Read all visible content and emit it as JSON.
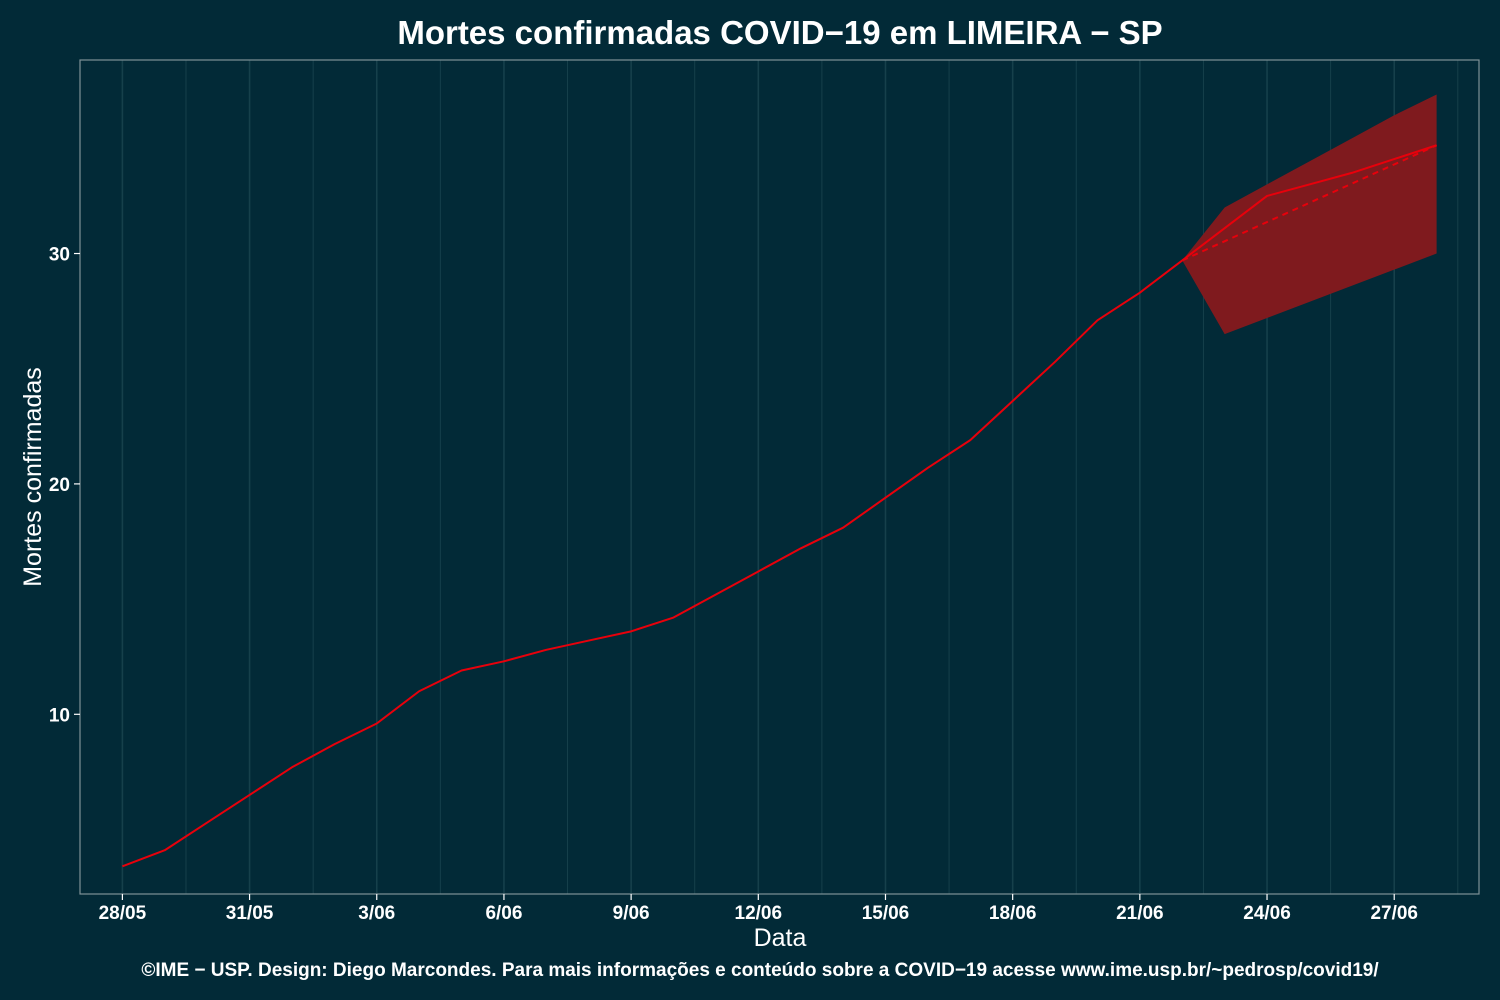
{
  "chart_data": {
    "type": "line",
    "title": "Mortes confirmadas COVID−19 em LIMEIRA − SP",
    "xlabel": "Data",
    "ylabel": "Mortes confirmadas",
    "caption": "©IME − USP. Design: Diego Marcondes. Para mais informações e conteúdo sobre a COVID−19 acesse www.ime.usp.br/~pedrosp/covid19/",
    "x_ticks": [
      "28/05",
      "31/05",
      "3/06",
      "6/06",
      "9/06",
      "12/06",
      "15/06",
      "18/06",
      "21/06",
      "24/06",
      "27/06"
    ],
    "y_ticks": [
      10,
      20,
      30
    ],
    "xlim": [
      "27/05",
      "29/06"
    ],
    "ylim": [
      2.2,
      38.4
    ],
    "grid": true,
    "colors": {
      "background": "#022a37",
      "line": "#e8000b",
      "band": "#7f1a1e",
      "grid": "#16404b",
      "frame": "#7f9196"
    },
    "series": [
      {
        "style": "solid",
        "x": [
          "28/05",
          "29/05",
          "30/05",
          "31/05",
          "01/06",
          "02/06",
          "03/06",
          "04/06",
          "05/06",
          "06/06",
          "07/06",
          "08/06",
          "09/06",
          "10/06",
          "11/06",
          "12/06",
          "13/06",
          "14/06",
          "15/06",
          "16/06",
          "17/06",
          "18/06",
          "19/06",
          "20/06",
          "21/06",
          "22/06"
        ],
        "y": [
          3.4,
          4.1,
          5.3,
          6.5,
          7.7,
          8.7,
          9.6,
          11.0,
          11.9,
          12.3,
          12.8,
          13.2,
          13.6,
          14.2,
          15.2,
          16.2,
          17.2,
          18.1,
          19.4,
          20.7,
          21.9,
          23.6,
          25.3,
          27.1,
          28.3,
          29.7
        ]
      },
      {
        "style": "solid",
        "x": [
          "22/06",
          "23/06",
          "24/06",
          "25/06",
          "26/06",
          "27/06",
          "28/06"
        ],
        "y": [
          29.7,
          31.1,
          32.5,
          33.0,
          33.5,
          34.1,
          34.7
        ]
      },
      {
        "style": "dashed",
        "x": [
          "22/06",
          "28/06"
        ],
        "y": [
          29.7,
          34.7
        ]
      }
    ],
    "band": {
      "x": [
        "22/06",
        "23/06",
        "24/06",
        "25/06",
        "26/06",
        "27/06",
        "28/06"
      ],
      "lower": [
        29.7,
        26.5,
        27.2,
        27.9,
        28.6,
        29.3,
        30.0
      ],
      "upper": [
        29.7,
        32.0,
        33.0,
        34.0,
        35.0,
        36.0,
        36.9
      ]
    }
  }
}
